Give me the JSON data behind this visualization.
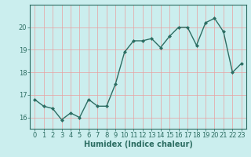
{
  "x": [
    0,
    1,
    2,
    3,
    4,
    5,
    6,
    7,
    8,
    9,
    10,
    11,
    12,
    13,
    14,
    15,
    16,
    17,
    18,
    19,
    20,
    21,
    22,
    23
  ],
  "y": [
    16.8,
    16.5,
    16.4,
    15.9,
    16.2,
    16.0,
    16.8,
    16.5,
    16.5,
    17.5,
    18.9,
    19.4,
    19.4,
    19.5,
    19.1,
    19.6,
    20.0,
    20.0,
    19.2,
    20.2,
    20.4,
    19.8,
    18.0,
    18.4
  ],
  "line_color": "#2d6e63",
  "marker": "D",
  "marker_size": 2,
  "bg_color": "#cbeeee",
  "grid_color": "#e8a0a0",
  "xlabel": "Humidex (Indice chaleur)",
  "xlabel_fontsize": 7,
  "ylim": [
    15.5,
    21.0
  ],
  "xlim": [
    -0.5,
    23.5
  ],
  "yticks": [
    16,
    17,
    18,
    19,
    20
  ],
  "xticks": [
    0,
    1,
    2,
    3,
    4,
    5,
    6,
    7,
    8,
    9,
    10,
    11,
    12,
    13,
    14,
    15,
    16,
    17,
    18,
    19,
    20,
    21,
    22,
    23
  ],
  "tick_fontsize": 6,
  "line_width": 1.0
}
